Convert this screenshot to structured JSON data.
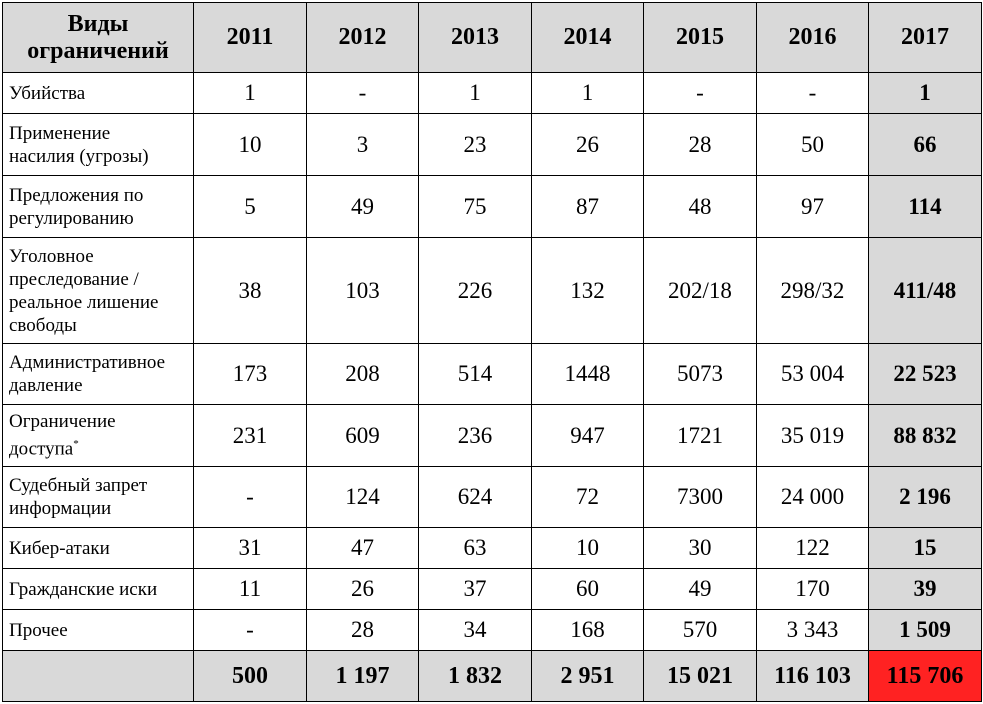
{
  "chart_data": {
    "type": "table",
    "header": {
      "label": [
        "Виды",
        "ограничений"
      ],
      "years": [
        "2011",
        "2012",
        "2013",
        "2014",
        "2015",
        "2016",
        "2017"
      ]
    },
    "rows": [
      {
        "label": [
          "Убийства"
        ],
        "values": [
          "1",
          "-",
          "1",
          "1",
          "-",
          "-",
          "1"
        ]
      },
      {
        "label": [
          "Применение",
          "насилия (угрозы)"
        ],
        "values": [
          "10",
          "3",
          "23",
          "26",
          "28",
          "50",
          "66"
        ]
      },
      {
        "label": [
          "Предложения по",
          "регулированию"
        ],
        "values": [
          "5",
          "49",
          "75",
          "87",
          "48",
          "97",
          "114"
        ]
      },
      {
        "label": [
          "Уголовное",
          "преследование /",
          "реальное лишение",
          "свободы"
        ],
        "values": [
          "38",
          "103",
          "226",
          "132",
          "202/18",
          "298/32",
          "411/48"
        ]
      },
      {
        "label": [
          "Административное",
          "давление"
        ],
        "values": [
          "173",
          "208",
          "514",
          "1448",
          "5073",
          "53 004",
          "22 523"
        ]
      },
      {
        "label": [
          "Ограничение",
          "доступа"
        ],
        "sup": "*",
        "values": [
          "231",
          "609",
          "236",
          "947",
          "1721",
          "35 019",
          "88 832"
        ]
      },
      {
        "label": [
          "Судебный запрет",
          "информации"
        ],
        "values": [
          "-",
          "124",
          "624",
          "72",
          "7300",
          "24 000",
          "2 196"
        ]
      },
      {
        "label": [
          "Кибер-атаки"
        ],
        "values": [
          "31",
          "47",
          "63",
          "10",
          "30",
          "122",
          "15"
        ]
      },
      {
        "label": [
          "Гражданские иски"
        ],
        "values": [
          "11",
          "26",
          "37",
          "60",
          "49",
          "170",
          "39"
        ]
      },
      {
        "label": [
          "Прочее"
        ],
        "values": [
          "-",
          "28",
          "34",
          "168",
          "570",
          "3 343",
          "1 509"
        ]
      }
    ],
    "totals": [
      "500",
      "1 197",
      "1 832",
      "2 951",
      "15 021",
      "116 103",
      "115 706"
    ],
    "colors": {
      "header_bg": "#d9d9d9",
      "highlight": "#ff2222",
      "grid": "#000000"
    }
  }
}
